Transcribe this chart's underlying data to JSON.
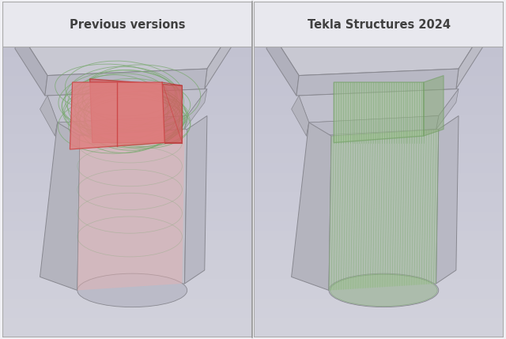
{
  "title_left": "Previous versions",
  "title_right": "Tekla Structures 2024",
  "bg_color": "#f0f0f4",
  "header_bg": "#e8e8ee",
  "border_color": "#aaaaaa",
  "title_fontsize": 10.5,
  "fig_width": 6.4,
  "fig_height": 4.29,
  "slab_face_color": "#c8c8d0",
  "slab_side_color": "#b0b0ba",
  "slab_bottom_color": "#a8a8b2",
  "col_face_color": "#c0c0c8",
  "col_side_color": "#b2b2bc",
  "rebar_green": "#7aaa70",
  "rebar_green_fill": "#9bbf8a",
  "rebar_red": "#cc5555",
  "rebar_red_fill": "#dd7777",
  "rebar_red_light": "#e8a0a0",
  "panel_content_bg_top": "#d8d8e0",
  "panel_content_bg_bot": "#c0c0cc",
  "divider_color": "#999999"
}
